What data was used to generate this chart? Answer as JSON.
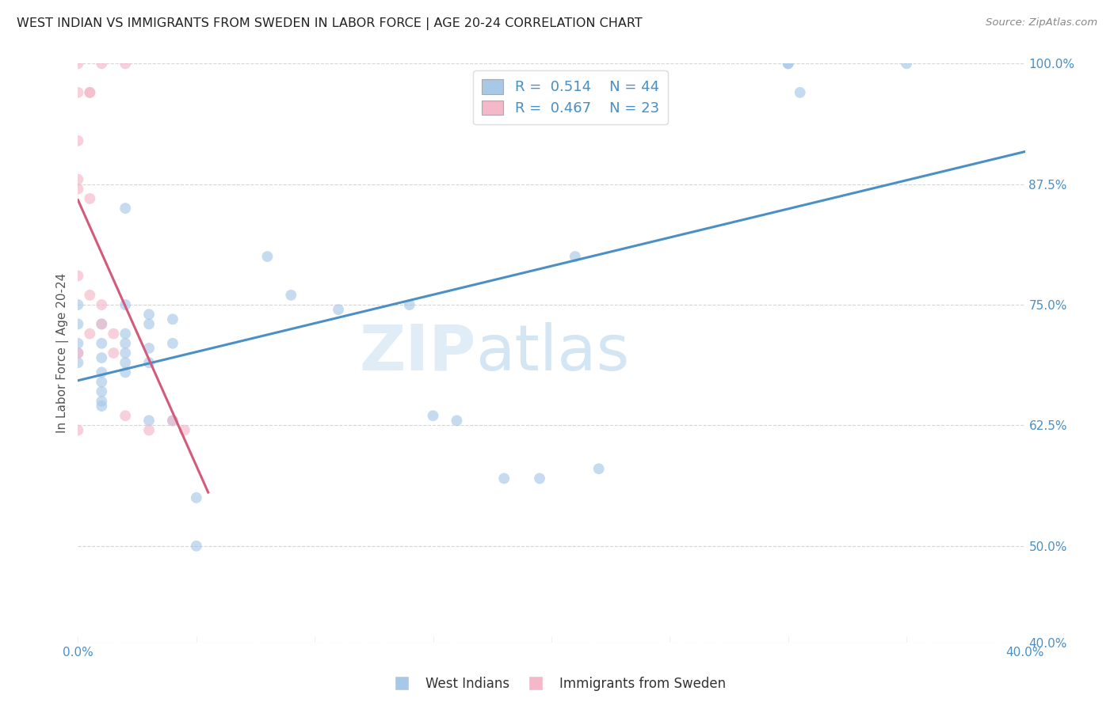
{
  "title": "WEST INDIAN VS IMMIGRANTS FROM SWEDEN IN LABOR FORCE | AGE 20-24 CORRELATION CHART",
  "source": "Source: ZipAtlas.com",
  "ylabel": "In Labor Force | Age 20-24",
  "background_color": "#ffffff",
  "watermark_zip": "ZIP",
  "watermark_atlas": "atlas",
  "blue_R": 0.514,
  "blue_N": 44,
  "pink_R": 0.467,
  "pink_N": 23,
  "xlim": [
    0.0,
    40.0
  ],
  "ylim": [
    40.0,
    100.0
  ],
  "xtick_vals": [
    0.0,
    5.0,
    10.0,
    15.0,
    20.0,
    25.0,
    30.0,
    35.0,
    40.0
  ],
  "xtick_labels": [
    "0.0%",
    "",
    "",
    "",
    "",
    "",
    "",
    "",
    "40.0%"
  ],
  "ytick_vals": [
    40.0,
    50.0,
    62.5,
    75.0,
    87.5,
    100.0
  ],
  "ytick_labels": [
    "40.0%",
    "50.0%",
    "62.5%",
    "75.0%",
    "87.5%",
    "100.0%"
  ],
  "blue_dots": [
    [
      0.0,
      73.0
    ],
    [
      0.0,
      75.0
    ],
    [
      0.0,
      71.0
    ],
    [
      0.0,
      70.0
    ],
    [
      0.0,
      69.0
    ],
    [
      1.0,
      73.0
    ],
    [
      1.0,
      71.0
    ],
    [
      1.0,
      69.5
    ],
    [
      1.0,
      68.0
    ],
    [
      1.0,
      67.0
    ],
    [
      1.0,
      66.0
    ],
    [
      1.0,
      65.0
    ],
    [
      1.0,
      64.5
    ],
    [
      2.0,
      85.0
    ],
    [
      2.0,
      75.0
    ],
    [
      2.0,
      72.0
    ],
    [
      2.0,
      71.0
    ],
    [
      2.0,
      70.0
    ],
    [
      2.0,
      69.0
    ],
    [
      2.0,
      68.0
    ],
    [
      3.0,
      74.0
    ],
    [
      3.0,
      73.0
    ],
    [
      3.0,
      70.5
    ],
    [
      3.0,
      69.0
    ],
    [
      3.0,
      63.0
    ],
    [
      4.0,
      73.5
    ],
    [
      4.0,
      71.0
    ],
    [
      4.0,
      63.0
    ],
    [
      5.0,
      55.0
    ],
    [
      5.0,
      50.0
    ],
    [
      8.0,
      80.0
    ],
    [
      9.0,
      76.0
    ],
    [
      11.0,
      74.5
    ],
    [
      14.0,
      75.0
    ],
    [
      15.0,
      63.5
    ],
    [
      16.0,
      63.0
    ],
    [
      18.0,
      57.0
    ],
    [
      19.5,
      57.0
    ],
    [
      21.0,
      80.0
    ],
    [
      22.0,
      58.0
    ],
    [
      30.0,
      100.0
    ],
    [
      30.0,
      100.0
    ],
    [
      30.5,
      97.0
    ],
    [
      35.0,
      100.0
    ]
  ],
  "pink_dots": [
    [
      0.0,
      100.0
    ],
    [
      1.0,
      100.0
    ],
    [
      2.0,
      100.0
    ],
    [
      0.0,
      97.0
    ],
    [
      0.5,
      97.0
    ],
    [
      0.5,
      97.0
    ],
    [
      0.0,
      92.0
    ],
    [
      0.0,
      88.0
    ],
    [
      0.0,
      87.0
    ],
    [
      0.5,
      86.0
    ],
    [
      0.0,
      78.0
    ],
    [
      0.5,
      76.0
    ],
    [
      1.0,
      75.0
    ],
    [
      1.0,
      73.0
    ],
    [
      1.5,
      72.0
    ],
    [
      0.5,
      72.0
    ],
    [
      0.0,
      70.0
    ],
    [
      1.5,
      70.0
    ],
    [
      2.0,
      63.5
    ],
    [
      4.0,
      63.0
    ],
    [
      4.5,
      62.0
    ],
    [
      0.0,
      62.0
    ],
    [
      3.0,
      62.0
    ]
  ],
  "legend_label_blue": "West Indians",
  "legend_label_pink": "Immigrants from Sweden",
  "blue_color": "#a8c8e8",
  "pink_color": "#f4b8c8",
  "blue_line_color": "#4a90c4",
  "pink_line_color": "#d45a7a",
  "dot_size": 100,
  "dot_alpha": 0.65,
  "grid_color": "#cccccc",
  "grid_alpha": 0.8
}
